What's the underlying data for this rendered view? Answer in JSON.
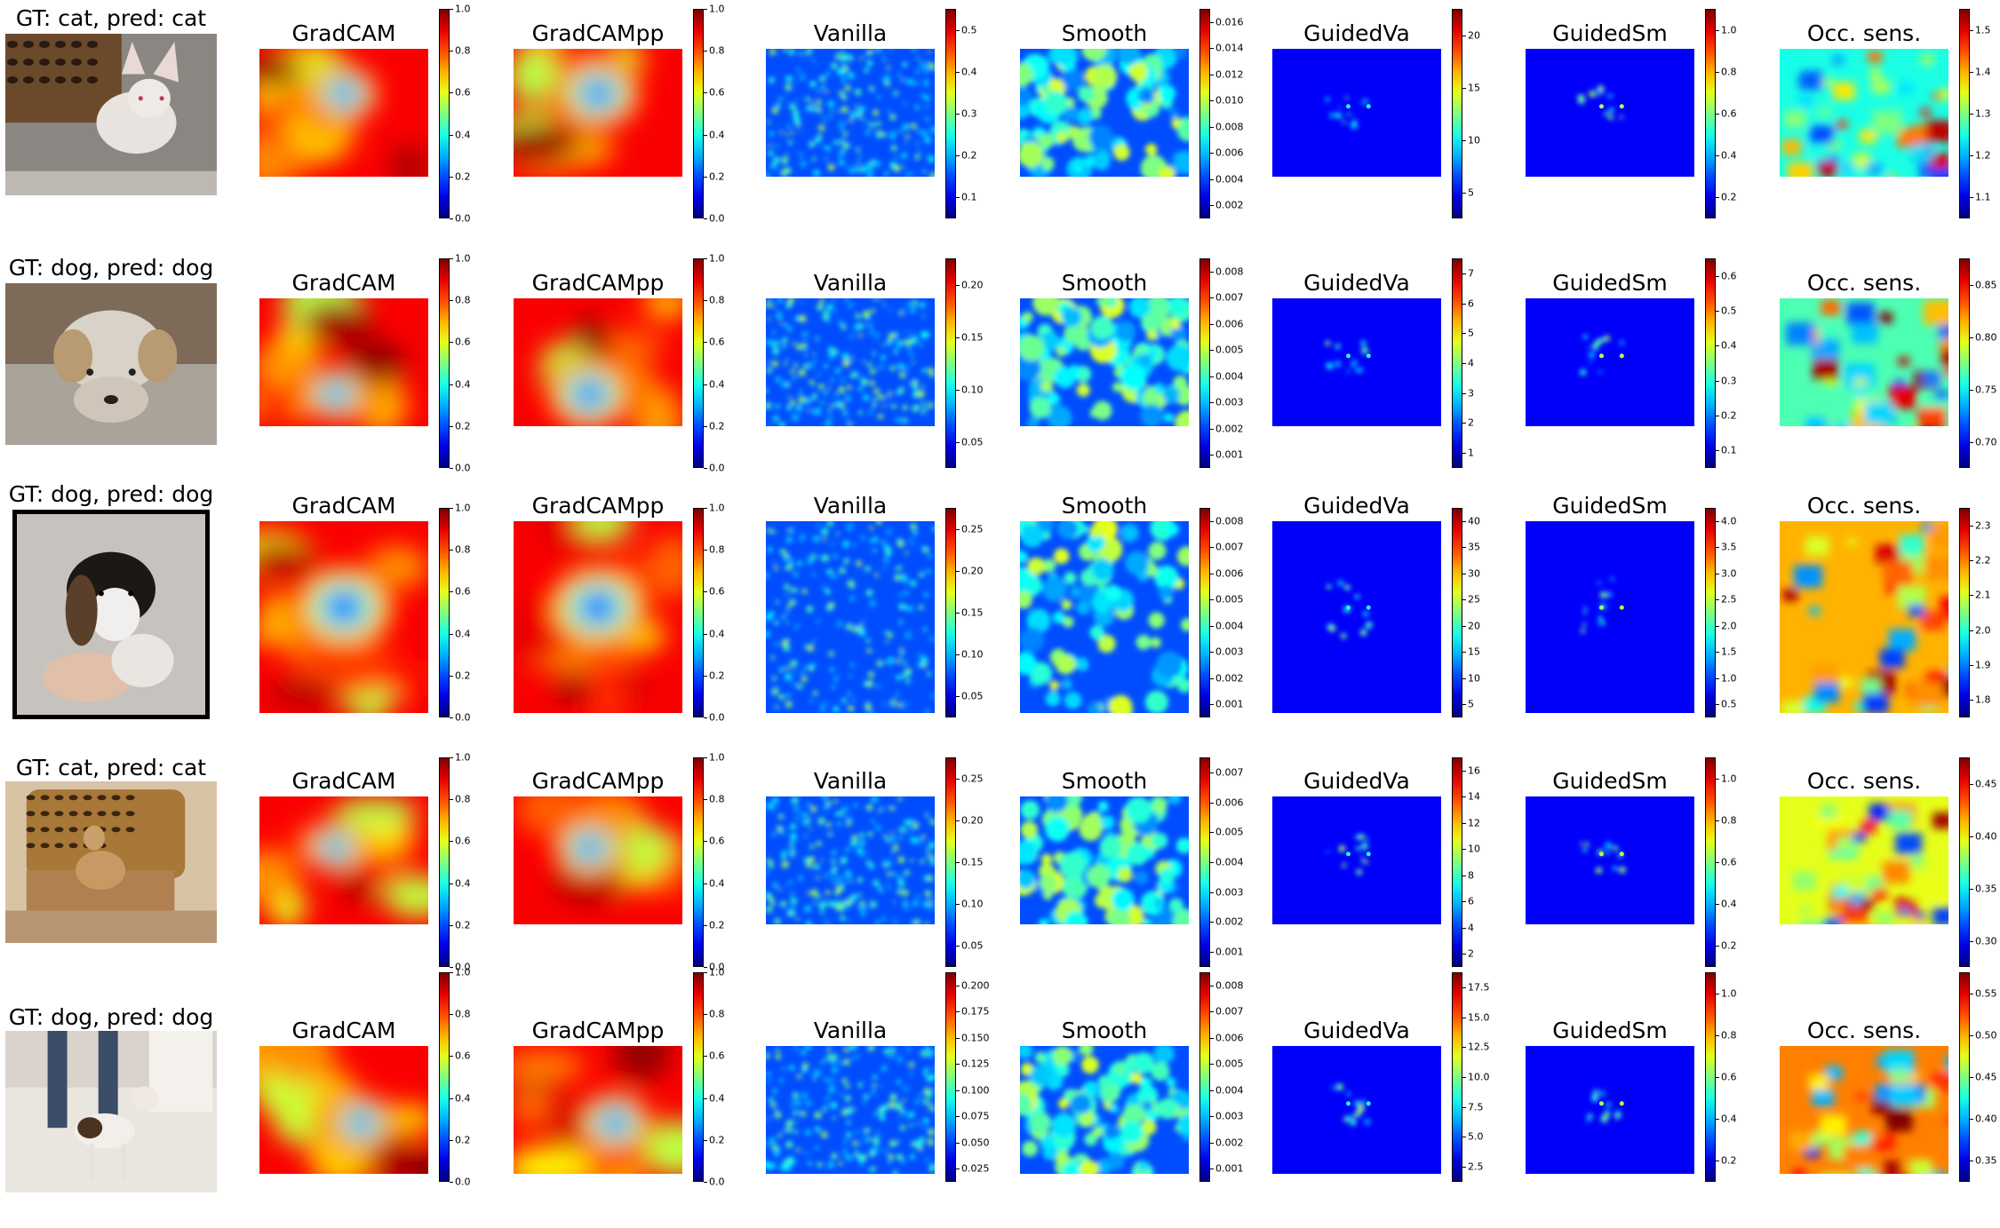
{
  "colormap": {
    "name": "jet",
    "stops": [
      "#00007f",
      "#0000ff",
      "#00ffff",
      "#ffff00",
      "#ff0000",
      "#7f0000"
    ]
  },
  "column_titles": [
    "GradCAM",
    "GradCAMpp",
    "Vanilla",
    "Smooth",
    "GuidedVa",
    "GuidedSm",
    "Occ. sens."
  ],
  "rows": [
    {
      "photo_title": "GT: cat, pred: cat",
      "photo_subject": "white kitten on leopard-print blanket",
      "panels": [
        {
          "ticks": [
            "0.0",
            "0.2",
            "0.4",
            "0.6",
            "0.8",
            "1.0"
          ]
        },
        {
          "ticks": [
            "0.0",
            "0.2",
            "0.4",
            "0.6",
            "0.8",
            "1.0"
          ]
        },
        {
          "ticks": [
            "0.1",
            "0.2",
            "0.3",
            "0.4",
            "0.5"
          ]
        },
        {
          "ticks": [
            "0.002",
            "0.004",
            "0.006",
            "0.008",
            "0.010",
            "0.012",
            "0.014",
            "0.016"
          ]
        },
        {
          "ticks": [
            "5",
            "10",
            "15",
            "20"
          ]
        },
        {
          "ticks": [
            "0.2",
            "0.4",
            "0.6",
            "0.8",
            "1.0"
          ]
        },
        {
          "ticks": [
            "1.1",
            "1.2",
            "1.3",
            "1.4",
            "1.5"
          ]
        }
      ]
    },
    {
      "photo_title": "GT: dog, pred: dog",
      "photo_subject": "small shih tzu dog close-up",
      "panels": [
        {
          "ticks": [
            "0.0",
            "0.2",
            "0.4",
            "0.6",
            "0.8",
            "1.0"
          ]
        },
        {
          "ticks": [
            "0.0",
            "0.2",
            "0.4",
            "0.6",
            "0.8",
            "1.0"
          ]
        },
        {
          "ticks": [
            "0.05",
            "0.10",
            "0.15",
            "0.20"
          ]
        },
        {
          "ticks": [
            "0.001",
            "0.002",
            "0.003",
            "0.004",
            "0.005",
            "0.006",
            "0.007",
            "0.008"
          ]
        },
        {
          "ticks": [
            "1",
            "2",
            "3",
            "4",
            "5",
            "6",
            "7"
          ]
        },
        {
          "ticks": [
            "0.1",
            "0.2",
            "0.3",
            "0.4",
            "0.5",
            "0.6"
          ]
        },
        {
          "ticks": [
            "0.70",
            "0.75",
            "0.80",
            "0.85"
          ]
        }
      ]
    },
    {
      "photo_title": "GT: dog, pred: dog",
      "photo_subject": "beagle puppy held in hands",
      "panels": [
        {
          "ticks": [
            "0.0",
            "0.2",
            "0.4",
            "0.6",
            "0.8",
            "1.0"
          ]
        },
        {
          "ticks": [
            "0.0",
            "0.2",
            "0.4",
            "0.6",
            "0.8",
            "1.0"
          ]
        },
        {
          "ticks": [
            "0.05",
            "0.10",
            "0.15",
            "0.20",
            "0.25"
          ]
        },
        {
          "ticks": [
            "0.001",
            "0.002",
            "0.003",
            "0.004",
            "0.005",
            "0.006",
            "0.007",
            "0.008"
          ]
        },
        {
          "ticks": [
            "5",
            "10",
            "15",
            "20",
            "25",
            "30",
            "35",
            "40"
          ]
        },
        {
          "ticks": [
            "0.5",
            "1.0",
            "1.5",
            "2.0",
            "2.5",
            "3.0",
            "3.5",
            "4.0"
          ]
        },
        {
          "ticks": [
            "1.8",
            "1.9",
            "2.0",
            "2.1",
            "2.2",
            "2.3"
          ]
        }
      ]
    },
    {
      "photo_title": "GT: cat, pred: cat",
      "photo_subject": "cat on leopard-print armchair",
      "panels": [
        {
          "ticks": [
            "0.0",
            "0.2",
            "0.4",
            "0.6",
            "0.8",
            "1.0"
          ]
        },
        {
          "ticks": [
            "0.0",
            "0.2",
            "0.4",
            "0.6",
            "0.8",
            "1.0"
          ]
        },
        {
          "ticks": [
            "0.05",
            "0.10",
            "0.15",
            "0.20",
            "0.25"
          ]
        },
        {
          "ticks": [
            "0.001",
            "0.002",
            "0.003",
            "0.004",
            "0.005",
            "0.006",
            "0.007"
          ]
        },
        {
          "ticks": [
            "2",
            "4",
            "6",
            "8",
            "10",
            "12",
            "14",
            "16"
          ]
        },
        {
          "ticks": [
            "0.2",
            "0.4",
            "0.6",
            "0.8",
            "1.0"
          ]
        },
        {
          "ticks": [
            "0.30",
            "0.35",
            "0.40",
            "0.45"
          ]
        }
      ]
    },
    {
      "photo_title": "GT: dog, pred: dog",
      "photo_subject": "chihuahua standing on tile floor",
      "panels": [
        {
          "ticks": [
            "0.0",
            "0.2",
            "0.4",
            "0.6",
            "0.8",
            "1.0"
          ]
        },
        {
          "ticks": [
            "0.0",
            "0.2",
            "0.4",
            "0.6",
            "0.8",
            "1.0"
          ]
        },
        {
          "ticks": [
            "0.025",
            "0.050",
            "0.075",
            "0.100",
            "0.125",
            "0.150",
            "0.175",
            "0.200"
          ]
        },
        {
          "ticks": [
            "0.001",
            "0.002",
            "0.003",
            "0.004",
            "0.005",
            "0.006",
            "0.007",
            "0.008"
          ]
        },
        {
          "ticks": [
            "2.5",
            "5.0",
            "7.5",
            "10.0",
            "12.5",
            "15.0",
            "17.5"
          ]
        },
        {
          "ticks": [
            "0.2",
            "0.4",
            "0.6",
            "0.8",
            "1.0"
          ]
        },
        {
          "ticks": [
            "0.35",
            "0.40",
            "0.45",
            "0.50",
            "0.55"
          ]
        }
      ]
    }
  ]
}
